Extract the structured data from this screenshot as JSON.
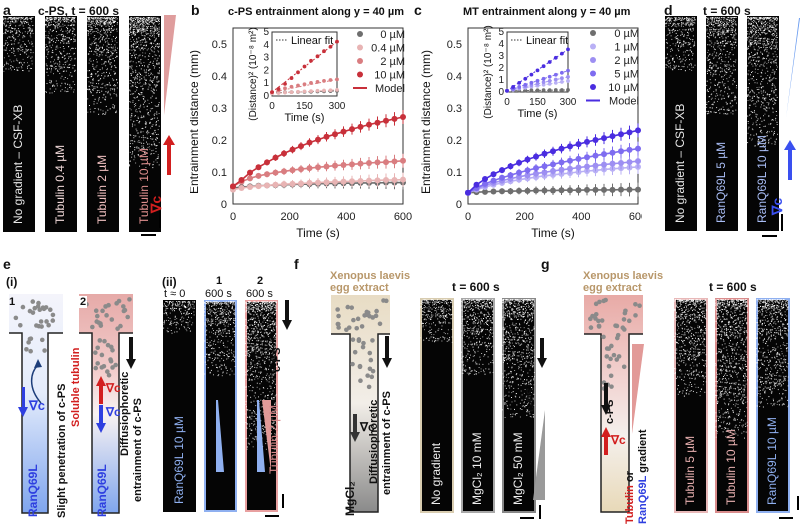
{
  "colors": {
    "tubulin_red": "#c8303a",
    "tubulin_pink": "#d9898b",
    "ran_blue": "#3a3ae0",
    "ran_light_blue": "#8fb0f0",
    "extract_tan": "#b8976a",
    "mgcl_gray": "#9a9a9a"
  },
  "panel_a": {
    "label": "a",
    "title": "c-PS, t = 600 s",
    "strips": [
      {
        "label": "No gradient – CSF-XB",
        "color": "#e8e8e8",
        "density": 0.25
      },
      {
        "label": "Tubulin 0.4 µM",
        "color": "#f0d8d8",
        "density": 0.35
      },
      {
        "label": "Tubulin 2 µM",
        "color": "#f0c0c0",
        "density": 0.45
      },
      {
        "label": "Tubulin 10 µM",
        "color": "#e0908f",
        "density": 0.7
      }
    ],
    "gradient_label": "∇c"
  },
  "panel_d": {
    "label": "d",
    "title": "t = 600 s",
    "strips": [
      {
        "label": "No gradient – CSF-XB",
        "color": "#e8e8e8",
        "density": 0.25
      },
      {
        "label": "RanQ69L 5 µM",
        "color": "#a9bdf5",
        "density": 0.45
      },
      {
        "label": "RanQ69L 10 µM",
        "color": "#a9bdf5",
        "density": 0.6
      }
    ],
    "gradient_label": "∇c"
  },
  "chart_data": [
    {
      "id": "b",
      "label": "b",
      "type": "line",
      "title": "c-PS entrainment along y = 40 µm",
      "xlabel": "Time (s)",
      "ylabel": "Entrainment distance (mm)",
      "xlim": [
        0,
        600
      ],
      "ylim": [
        0,
        0.55
      ],
      "xticks": [
        0,
        200,
        400,
        600
      ],
      "yticks": [
        0,
        0.1,
        0.2,
        0.3,
        0.4,
        0.5
      ],
      "grid": false,
      "legend_position": "top-right",
      "legend_model_label": "Model",
      "x": [
        0,
        30,
        60,
        90,
        120,
        150,
        180,
        210,
        240,
        270,
        300,
        330,
        360,
        390,
        420,
        450,
        480,
        510,
        540,
        570,
        600
      ],
      "series": [
        {
          "name": "0 µM",
          "color": "#6e6e6e",
          "values": [
            0.05,
            0.053,
            0.055,
            0.057,
            0.058,
            0.059,
            0.06,
            0.061,
            0.062,
            0.062,
            0.063,
            0.064,
            0.064,
            0.065,
            0.065,
            0.066,
            0.066,
            0.066,
            0.067,
            0.067,
            0.067
          ]
        },
        {
          "name": "0.4 µM",
          "color": "#e8b4b4",
          "values": [
            0.045,
            0.05,
            0.053,
            0.056,
            0.058,
            0.06,
            0.062,
            0.063,
            0.064,
            0.066,
            0.067,
            0.068,
            0.069,
            0.07,
            0.071,
            0.072,
            0.073,
            0.074,
            0.075,
            0.075,
            0.076
          ]
        },
        {
          "name": "2 µM",
          "color": "#d97d80",
          "values": [
            0.055,
            0.07,
            0.08,
            0.088,
            0.093,
            0.098,
            0.102,
            0.106,
            0.109,
            0.112,
            0.115,
            0.117,
            0.12,
            0.122,
            0.124,
            0.126,
            0.128,
            0.13,
            0.131,
            0.133,
            0.135
          ]
        },
        {
          "name": "10 µM",
          "color": "#c8303a",
          "values": [
            0.055,
            0.075,
            0.098,
            0.115,
            0.13,
            0.145,
            0.158,
            0.17,
            0.181,
            0.192,
            0.201,
            0.21,
            0.218,
            0.226,
            0.234,
            0.241,
            0.248,
            0.254,
            0.26,
            0.266,
            0.272
          ]
        }
      ],
      "inset": {
        "xlabel": "Time (s)",
        "ylabel": "(Distance)² (10⁻⁸ m²)",
        "xlim": [
          0,
          300
        ],
        "ylim": [
          0,
          5
        ],
        "xticks": [
          0,
          150,
          300
        ],
        "yticks": [
          0,
          1,
          2,
          3,
          4,
          5
        ],
        "legend": "Linear fit",
        "x": [
          0,
          30,
          60,
          90,
          120,
          150,
          180,
          210,
          240,
          270,
          300
        ],
        "series": [
          {
            "name": "0 µM",
            "color": "#6e6e6e",
            "values": [
              0.25,
              0.27,
              0.29,
              0.3,
              0.31,
              0.32,
              0.33,
              0.35,
              0.36,
              0.38,
              0.4
            ]
          },
          {
            "name": "0.4 µM",
            "color": "#e8b4b4",
            "values": [
              0.2,
              0.23,
              0.27,
              0.3,
              0.33,
              0.36,
              0.38,
              0.41,
              0.43,
              0.45,
              0.48
            ]
          },
          {
            "name": "2 µM",
            "color": "#d97d80",
            "values": [
              0.3,
              0.45,
              0.6,
              0.72,
              0.82,
              0.92,
              1.02,
              1.1,
              1.18,
              1.25,
              1.3
            ]
          },
          {
            "name": "10 µM",
            "color": "#c8303a",
            "values": [
              0.3,
              0.55,
              0.95,
              1.4,
              1.85,
              2.3,
              2.75,
              3.1,
              3.5,
              3.85,
              4.25
            ]
          }
        ]
      }
    },
    {
      "id": "c",
      "label": "c",
      "type": "line",
      "title": "MT entrainment along y = 40 µm",
      "xlabel": "Time (s)",
      "ylabel": "Entrainment distance (mm)",
      "xlim": [
        0,
        600
      ],
      "ylim": [
        0,
        0.55
      ],
      "xticks": [
        0,
        200,
        400,
        600
      ],
      "yticks": [
        0,
        0.1,
        0.2,
        0.3,
        0.4,
        0.5
      ],
      "grid": false,
      "legend_position": "top-right",
      "legend_model_label": "Model",
      "x": [
        0,
        30,
        60,
        90,
        120,
        150,
        180,
        210,
        240,
        270,
        300,
        330,
        360,
        390,
        420,
        450,
        480,
        510,
        540,
        570,
        600
      ],
      "series": [
        {
          "name": "0 µM",
          "color": "#6e6e6e",
          "values": [
            0.035,
            0.037,
            0.038,
            0.039,
            0.04,
            0.04,
            0.041,
            0.041,
            0.042,
            0.042,
            0.042,
            0.043,
            0.043,
            0.043,
            0.044,
            0.044,
            0.044,
            0.044,
            0.045,
            0.045,
            0.045
          ]
        },
        {
          "name": "1 µM",
          "color": "#b9b0f5",
          "values": [
            0.035,
            0.045,
            0.053,
            0.06,
            0.066,
            0.071,
            0.076,
            0.08,
            0.084,
            0.088,
            0.091,
            0.094,
            0.097,
            0.1,
            0.103,
            0.105,
            0.108,
            0.11,
            0.112,
            0.114,
            0.116
          ]
        },
        {
          "name": "2 µM",
          "color": "#9d8ff2",
          "values": [
            0.035,
            0.048,
            0.058,
            0.066,
            0.073,
            0.079,
            0.085,
            0.09,
            0.095,
            0.099,
            0.103,
            0.107,
            0.11,
            0.114,
            0.117,
            0.12,
            0.123,
            0.126,
            0.128,
            0.131,
            0.134
          ]
        },
        {
          "name": "5 µM",
          "color": "#7e6cf0",
          "values": [
            0.035,
            0.05,
            0.063,
            0.073,
            0.082,
            0.09,
            0.098,
            0.105,
            0.112,
            0.118,
            0.124,
            0.13,
            0.135,
            0.141,
            0.146,
            0.151,
            0.156,
            0.16,
            0.165,
            0.169,
            0.173
          ]
        },
        {
          "name": "10 µM",
          "color": "#4a2de0",
          "values": [
            0.035,
            0.06,
            0.078,
            0.093,
            0.106,
            0.118,
            0.129,
            0.139,
            0.148,
            0.157,
            0.165,
            0.173,
            0.18,
            0.187,
            0.194,
            0.2,
            0.206,
            0.212,
            0.218,
            0.224,
            0.23
          ]
        }
      ],
      "inset": {
        "xlabel": "Time (s)",
        "ylabel": "(Distance)² (10⁻⁸ m²)",
        "xlim": [
          0,
          300
        ],
        "ylim": [
          0,
          5
        ],
        "xticks": [
          0,
          150,
          300
        ],
        "yticks": [
          0,
          1,
          2,
          3,
          4,
          5
        ],
        "legend": "Linear fit",
        "x": [
          0,
          30,
          60,
          90,
          120,
          150,
          180,
          210,
          240,
          270,
          300
        ],
        "series": [
          {
            "name": "0 µM",
            "color": "#6e6e6e",
            "values": [
              0.1,
              0.11,
              0.12,
              0.13,
              0.14,
              0.14,
              0.15,
              0.15,
              0.16,
              0.16,
              0.17
            ]
          },
          {
            "name": "1 µM",
            "color": "#b9b0f5",
            "values": [
              0.1,
              0.18,
              0.27,
              0.35,
              0.44,
              0.52,
              0.6,
              0.68,
              0.76,
              0.84,
              0.92
            ]
          },
          {
            "name": "2 µM",
            "color": "#9d8ff2",
            "values": [
              0.1,
              0.22,
              0.34,
              0.46,
              0.58,
              0.7,
              0.82,
              0.93,
              1.04,
              1.15,
              1.26
            ]
          },
          {
            "name": "5 µM",
            "color": "#7e6cf0",
            "values": [
              0.1,
              0.26,
              0.43,
              0.6,
              0.77,
              0.94,
              1.1,
              1.27,
              1.44,
              1.6,
              1.78
            ]
          },
          {
            "name": "10 µM",
            "color": "#4a2de0",
            "values": [
              0.1,
              0.42,
              0.76,
              1.1,
              1.45,
              1.8,
              2.15,
              2.5,
              2.85,
              3.2,
              3.55
            ]
          }
        ]
      }
    }
  ],
  "panel_e": {
    "label": "e",
    "part_i": "(i)",
    "part_ii": "(ii)",
    "diagram1_num": "1",
    "diagram2_num": "2",
    "diagram1_channel_label": "RanQ69L",
    "diagram1_annotation": "Slight penetration of c-PS",
    "diagram1_grad": "∇c",
    "diagram2_channel_label": "RanQ69L",
    "diagram2_tubulin_label": "Soluble tubulin",
    "diagram2_grad_red": "∇c",
    "diagram2_grad_blue": "∇c",
    "diagram2_annotation_line1": "Diffusiophoretic",
    "diagram2_annotation_line2": "entrainment of c-PS",
    "strips": [
      {
        "top1": "",
        "top2": "t ≈ 0",
        "label": "RanQ69L 10 µM",
        "label_color": "#8fb0f0",
        "border": "none",
        "density": 0.15
      },
      {
        "top1": "1",
        "top2": "600 s",
        "label": "",
        "label_color": "#8fb0f0",
        "border": "#8fb0f0",
        "density": 0.35
      },
      {
        "top1": "2",
        "top2": "600 s",
        "label": "",
        "label_color": "#d9898b",
        "border": "#e8a0a0",
        "density": 0.7
      }
    ],
    "side_label_tubulin": "Tubulin 2 µM",
    "side_label_cps": "c-PS"
  },
  "panel_f": {
    "label": "f",
    "extract_line1": "Xenopus laevis",
    "extract_line2": "egg extract",
    "channel_label": "MgCl₂",
    "grad_label": "∇c",
    "annotation_line1": "Diffusiophoretic",
    "annotation_line2": "entrainment of c-PS",
    "title": "t = 600 s",
    "strips": [
      {
        "label": "No gradient",
        "border": "#d8ccb0",
        "density": 0.2
      },
      {
        "label": "MgCl₂ 10 mM",
        "border": "#a8a8a8",
        "density": 0.35
      },
      {
        "label": "MgCl₂ 50 mM",
        "border": "#888888",
        "density": 0.55
      }
    ],
    "side_label_cps": "c-PS"
  },
  "panel_g": {
    "label": "g",
    "extract_line1": "Xenopus laevis",
    "extract_line2": "egg extract",
    "cps_label": "c-PS",
    "grad_label": "∇c",
    "gradient_word_tubulin": "Tubulin",
    "gradient_word_or": " or",
    "gradient_word_ran": "RanQ69L",
    "gradient_word_suffix": " gradient",
    "title": "t = 600 s",
    "strips": [
      {
        "label": "Tubulin 5 µM",
        "label_color": "#e8b0b0",
        "border": "#e8b8b8",
        "density": 0.45
      },
      {
        "label": "Tubulin 10 µM",
        "label_color": "#e8b0b0",
        "border": "#d98c8c",
        "density": 0.65
      },
      {
        "label": "RanQ69L 10 µM",
        "label_color": "#8fb0f0",
        "border": "#8fb0f0",
        "density": 0.5
      }
    ]
  }
}
